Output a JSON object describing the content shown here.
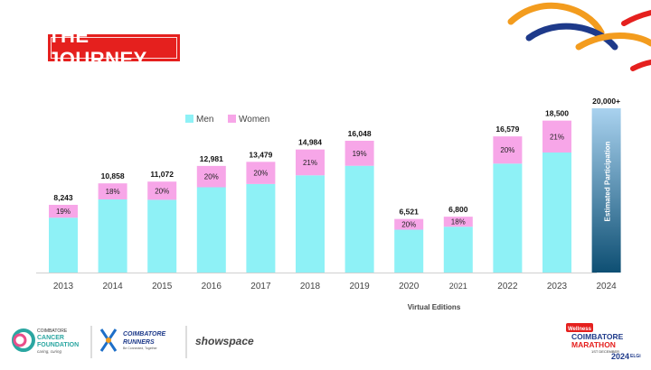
{
  "header": {
    "title": "THE JOURNEY"
  },
  "colors": {
    "men": "#8ef1f6",
    "women": "#f7a6e8",
    "estimated_top": "#a9d2ef",
    "estimated_bottom": "#0e4f73",
    "title_bg": "#e5201e",
    "swoosh_orange": "#f39c1e",
    "swoosh_blue": "#1e3a8a",
    "swoosh_red": "#e5201e"
  },
  "chart_data": {
    "type": "bar",
    "stacked": true,
    "categories": [
      "2013",
      "2014",
      "2015",
      "2016",
      "2017",
      "2018",
      "2019",
      "2020",
      "2021",
      "2022",
      "2023",
      "2024"
    ],
    "totals": [
      8243,
      10858,
      11072,
      12981,
      13479,
      14984,
      16048,
      6521,
      6800,
      16579,
      18500,
      20000
    ],
    "total_labels": [
      "8,243",
      "10,858",
      "11,072",
      "12,981",
      "13,479",
      "14,984",
      "16,048",
      "6,521",
      "6,800",
      "16,579",
      "18,500",
      "20,000+"
    ],
    "women_pct": [
      19,
      18,
      20,
      20,
      20,
      21,
      19,
      20,
      18,
      20,
      21,
      null
    ],
    "women_pct_labels": [
      "19%",
      "18%",
      "20%",
      "20%",
      "20%",
      "21%",
      "19%",
      "20%",
      "18%",
      "20%",
      "21%",
      ""
    ],
    "series": [
      {
        "name": "Men",
        "color": "#8ef1f6"
      },
      {
        "name": "Women",
        "color": "#f7a6e8"
      }
    ],
    "estimated_index": 11,
    "estimated_label": "Estimated Participation",
    "virtual_label": "Virtual Editions",
    "legend_position": "top-left",
    "grid": false,
    "ylim": [
      0,
      20000
    ]
  },
  "footer": {
    "ccf": {
      "line1": "COIMBATORE",
      "line2": "CANCER",
      "line3": "FOUNDATION",
      "tagline": "caring, curing"
    },
    "runners": {
      "line1": "COIMBATORE",
      "line2": "RUNNERS",
      "tagline": "Be Connected, Together"
    },
    "showspace": {
      "name": "showspace"
    },
    "marathon": {
      "brand": "Wellness",
      "line1": "COIMBATORE",
      "line2": "MARATHON",
      "date": "1ST DECEMBER",
      "year": "2024",
      "sponsor": "ELGi"
    }
  }
}
